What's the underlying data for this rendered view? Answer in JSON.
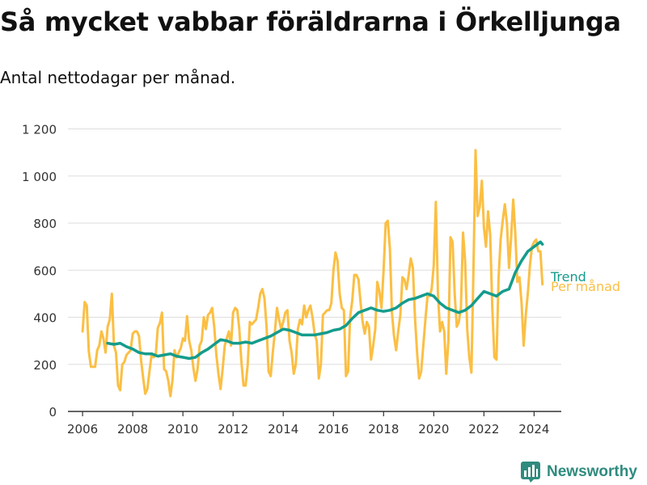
{
  "title": "Så mycket vabbar föräldrarna i Örkelljunga",
  "subtitle": "Antal nettodagar per månad.",
  "brand": "Newsworthy",
  "colors": {
    "monthly": "#fbbf44",
    "trend": "#149c8c",
    "grid": "#dedede",
    "axis": "#333333",
    "brand": "#2e8b7e"
  },
  "chart_data": {
    "type": "line",
    "x_type": "time",
    "ylim": [
      0,
      1250
    ],
    "xlim": [
      "2005-06",
      "2025-02"
    ],
    "yticks": [
      0,
      200,
      400,
      600,
      800,
      1000,
      1200
    ],
    "ytick_labels": [
      "0",
      "200",
      "400",
      "600",
      "800",
      "1 000",
      "1 200"
    ],
    "xticks": [
      2006,
      2008,
      2010,
      2012,
      2014,
      2016,
      2018,
      2020,
      2022,
      2024
    ],
    "grid": "horizontal",
    "legend": "right-end labels",
    "series": [
      {
        "name": "Per månad",
        "key": "monthly",
        "x": [
          "2006-01",
          "2006-02",
          "2006-03",
          "2006-04",
          "2006-05",
          "2006-06",
          "2006-07",
          "2006-08",
          "2006-09",
          "2006-10",
          "2006-11",
          "2006-12",
          "2007-01",
          "2007-02",
          "2007-03",
          "2007-04",
          "2007-05",
          "2007-06",
          "2007-07",
          "2007-08",
          "2007-09",
          "2007-10",
          "2007-11",
          "2007-12",
          "2008-01",
          "2008-02",
          "2008-03",
          "2008-04",
          "2008-05",
          "2008-06",
          "2008-07",
          "2008-08",
          "2008-09",
          "2008-10",
          "2008-11",
          "2008-12",
          "2009-01",
          "2009-02",
          "2009-03",
          "2009-04",
          "2009-05",
          "2009-06",
          "2009-07",
          "2009-08",
          "2009-09",
          "2009-10",
          "2009-11",
          "2009-12",
          "2010-01",
          "2010-02",
          "2010-03",
          "2010-04",
          "2010-05",
          "2010-06",
          "2010-07",
          "2010-08",
          "2010-09",
          "2010-10",
          "2010-11",
          "2010-12",
          "2011-01",
          "2011-02",
          "2011-03",
          "2011-04",
          "2011-05",
          "2011-06",
          "2011-07",
          "2011-08",
          "2011-09",
          "2011-10",
          "2011-11",
          "2011-12",
          "2012-01",
          "2012-02",
          "2012-03",
          "2012-04",
          "2012-05",
          "2012-06",
          "2012-07",
          "2012-08",
          "2012-09",
          "2012-10",
          "2012-11",
          "2012-12",
          "2013-01",
          "2013-02",
          "2013-03",
          "2013-04",
          "2013-05",
          "2013-06",
          "2013-07",
          "2013-08",
          "2013-09",
          "2013-10",
          "2013-11",
          "2013-12",
          "2014-01",
          "2014-02",
          "2014-03",
          "2014-04",
          "2014-05",
          "2014-06",
          "2014-07",
          "2014-08",
          "2014-09",
          "2014-10",
          "2014-11",
          "2014-12",
          "2015-01",
          "2015-02",
          "2015-03",
          "2015-04",
          "2015-05",
          "2015-06",
          "2015-07",
          "2015-08",
          "2015-09",
          "2015-10",
          "2015-11",
          "2015-12",
          "2016-01",
          "2016-02",
          "2016-03",
          "2016-04",
          "2016-05",
          "2016-06",
          "2016-07",
          "2016-08",
          "2016-09",
          "2016-10",
          "2016-11",
          "2016-12",
          "2017-01",
          "2017-02",
          "2017-03",
          "2017-04",
          "2017-05",
          "2017-06",
          "2017-07",
          "2017-08",
          "2017-09",
          "2017-10",
          "2017-11",
          "2017-12",
          "2018-01",
          "2018-02",
          "2018-03",
          "2018-04",
          "2018-05",
          "2018-06",
          "2018-07",
          "2018-08",
          "2018-09",
          "2018-10",
          "2018-11",
          "2018-12",
          "2019-01",
          "2019-02",
          "2019-03",
          "2019-04",
          "2019-05",
          "2019-06",
          "2019-07",
          "2019-08",
          "2019-09",
          "2019-10",
          "2019-11",
          "2019-12",
          "2020-01",
          "2020-02",
          "2020-03",
          "2020-04",
          "2020-05",
          "2020-06",
          "2020-07",
          "2020-08",
          "2020-09",
          "2020-10",
          "2020-11",
          "2020-12",
          "2021-01",
          "2021-02",
          "2021-03",
          "2021-04",
          "2021-05",
          "2021-06",
          "2021-07",
          "2021-08",
          "2021-09",
          "2021-10",
          "2021-11",
          "2021-12",
          "2022-01",
          "2022-02",
          "2022-03",
          "2022-04",
          "2022-05",
          "2022-06",
          "2022-07",
          "2022-08",
          "2022-09",
          "2022-10",
          "2022-11",
          "2022-12",
          "2023-01",
          "2023-02",
          "2023-03",
          "2023-04",
          "2023-05",
          "2023-06",
          "2023-07",
          "2023-08",
          "2023-09",
          "2023-10",
          "2023-11",
          "2023-12",
          "2024-01",
          "2024-02",
          "2024-03",
          "2024-04",
          "2024-05"
        ],
        "y": [
          340,
          465,
          450,
          255,
          190,
          190,
          190,
          260,
          280,
          340,
          310,
          250,
          360,
          390,
          500,
          280,
          250,
          110,
          90,
          200,
          210,
          240,
          250,
          260,
          330,
          340,
          340,
          320,
          215,
          140,
          75,
          95,
          170,
          240,
          230,
          240,
          355,
          375,
          420,
          180,
          170,
          130,
          65,
          130,
          260,
          230,
          250,
          270,
          310,
          300,
          405,
          300,
          260,
          185,
          130,
          180,
          280,
          300,
          400,
          350,
          410,
          420,
          440,
          360,
          240,
          160,
          95,
          180,
          280,
          310,
          340,
          280,
          420,
          440,
          430,
          350,
          210,
          110,
          110,
          200,
          380,
          370,
          380,
          390,
          440,
          500,
          520,
          480,
          360,
          170,
          150,
          250,
          340,
          440,
          390,
          350,
          380,
          420,
          430,
          300,
          250,
          160,
          200,
          350,
          390,
          370,
          450,
          400,
          430,
          450,
          400,
          330,
          300,
          140,
          200,
          410,
          420,
          430,
          430,
          460,
          600,
          675,
          640,
          500,
          440,
          430,
          150,
          170,
          400,
          470,
          580,
          580,
          560,
          460,
          380,
          330,
          380,
          360,
          220,
          280,
          350,
          550,
          510,
          440,
          600,
          800,
          810,
          690,
          420,
          320,
          260,
          340,
          410,
          570,
          560,
          520,
          580,
          650,
          610,
          400,
          250,
          140,
          170,
          280,
          390,
          490,
          490,
          520,
          620,
          890,
          500,
          340,
          380,
          340,
          160,
          300,
          740,
          720,
          500,
          360,
          380,
          440,
          760,
          640,
          350,
          230,
          165,
          600,
          1110,
          830,
          870,
          980,
          780,
          700,
          850,
          750,
          440,
          230,
          220,
          570,
          730,
          810,
          880,
          800,
          610,
          740,
          900,
          760,
          550,
          570,
          460,
          280,
          410,
          500,
          620,
          700,
          720,
          730,
          680,
          680,
          540
        ]
      },
      {
        "name": "Trend",
        "key": "trend",
        "x": [
          "2007-01",
          "2007-04",
          "2007-07",
          "2007-10",
          "2008-01",
          "2008-04",
          "2008-07",
          "2008-10",
          "2009-01",
          "2009-04",
          "2009-07",
          "2009-10",
          "2010-01",
          "2010-04",
          "2010-07",
          "2010-10",
          "2011-01",
          "2011-04",
          "2011-07",
          "2011-10",
          "2012-01",
          "2012-04",
          "2012-07",
          "2012-10",
          "2013-01",
          "2013-04",
          "2013-07",
          "2013-10",
          "2014-01",
          "2014-04",
          "2014-07",
          "2014-10",
          "2015-01",
          "2015-04",
          "2015-07",
          "2015-10",
          "2016-01",
          "2016-04",
          "2016-07",
          "2016-10",
          "2017-01",
          "2017-04",
          "2017-07",
          "2017-10",
          "2018-01",
          "2018-04",
          "2018-07",
          "2018-10",
          "2019-01",
          "2019-04",
          "2019-07",
          "2019-10",
          "2020-01",
          "2020-04",
          "2020-07",
          "2020-10",
          "2021-01",
          "2021-04",
          "2021-07",
          "2021-10",
          "2022-01",
          "2022-04",
          "2022-07",
          "2022-10",
          "2023-01",
          "2023-04",
          "2023-07",
          "2023-10",
          "2024-01",
          "2024-04",
          "2024-05"
        ],
        "y": [
          290,
          285,
          290,
          275,
          265,
          250,
          245,
          245,
          235,
          240,
          245,
          235,
          230,
          225,
          230,
          250,
          265,
          285,
          305,
          300,
          290,
          290,
          295,
          290,
          300,
          310,
          320,
          335,
          350,
          345,
          335,
          325,
          325,
          325,
          330,
          335,
          345,
          350,
          365,
          395,
          420,
          430,
          440,
          430,
          425,
          430,
          440,
          460,
          475,
          480,
          490,
          500,
          490,
          460,
          440,
          430,
          420,
          430,
          450,
          480,
          510,
          500,
          490,
          510,
          520,
          590,
          640,
          680,
          700,
          720,
          710
        ]
      }
    ]
  }
}
